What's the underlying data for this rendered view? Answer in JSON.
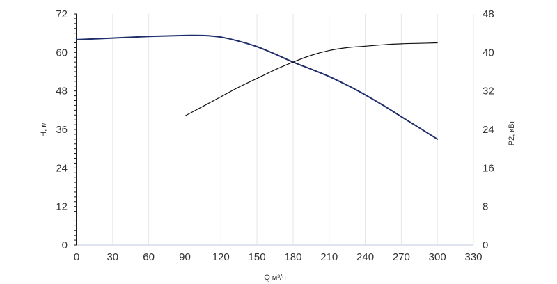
{
  "chart_data": {
    "type": "line",
    "title": "",
    "xlabel": "Q м³/ч",
    "ylabel_left": "H, м",
    "ylabel_right": "P2, кВт",
    "xlim": [
      0,
      330
    ],
    "ylim_left": [
      0,
      72
    ],
    "ylim_right": [
      0,
      48
    ],
    "x_ticks": [
      0,
      30,
      60,
      90,
      120,
      150,
      180,
      210,
      240,
      270,
      300,
      330
    ],
    "y_left_ticks": [
      0,
      12,
      24,
      36,
      48,
      60,
      72
    ],
    "y_right_ticks": [
      0,
      8,
      16,
      24,
      32,
      40,
      48
    ],
    "grid": "vertical",
    "series": [
      {
        "axis": "left",
        "color": "#1f2d6b",
        "x": [
          0,
          30,
          60,
          90,
          105,
          120,
          135,
          150,
          165,
          180,
          195,
          210,
          225,
          240,
          255,
          270,
          285,
          300
        ],
        "values": [
          64.0,
          64.5,
          65.0,
          65.3,
          65.3,
          64.8,
          63.5,
          61.8,
          59.5,
          57.0,
          54.8,
          52.5,
          49.8,
          46.8,
          43.5,
          40.0,
          36.5,
          33.0
        ]
      },
      {
        "axis": "right",
        "color": "#111111",
        "x": [
          90,
          105,
          120,
          135,
          150,
          165,
          180,
          195,
          210,
          225,
          240,
          255,
          270,
          285,
          300
        ],
        "values": [
          26.8,
          28.8,
          30.8,
          32.8,
          34.6,
          36.4,
          38.0,
          39.4,
          40.4,
          41.0,
          41.3,
          41.6,
          41.8,
          41.9,
          42.0
        ]
      }
    ]
  }
}
